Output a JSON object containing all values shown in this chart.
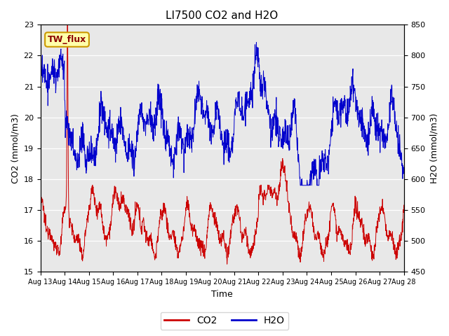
{
  "title": "LI7500 CO2 and H2O",
  "xlabel": "Time",
  "ylabel_left": "CO2 (mmol/m3)",
  "ylabel_right": "H2O (mmol/m3)",
  "ylim_left": [
    15.0,
    23.0
  ],
  "ylim_right": [
    450,
    850
  ],
  "yticks_left": [
    15.0,
    16.0,
    17.0,
    18.0,
    19.0,
    20.0,
    21.0,
    22.0,
    23.0
  ],
  "yticks_right": [
    450,
    500,
    550,
    600,
    650,
    700,
    750,
    800,
    850
  ],
  "xtick_labels": [
    "Aug 13",
    "Aug 14",
    "Aug 15",
    "Aug 16",
    "Aug 17",
    "Aug 18",
    "Aug 19",
    "Aug 20",
    "Aug 21",
    "Aug 22",
    "Aug 23",
    "Aug 24",
    "Aug 25",
    "Aug 26",
    "Aug 27",
    "Aug 28"
  ],
  "annotation_text": "TW_flux",
  "bg_color": "#e8e8e8",
  "line_co2_color": "#cc0000",
  "line_h2o_color": "#0000cc",
  "legend_co2": "CO2",
  "legend_h2o": "H2O",
  "title_fontsize": 11,
  "axis_fontsize": 9,
  "tick_fontsize": 8,
  "legend_fontsize": 10
}
